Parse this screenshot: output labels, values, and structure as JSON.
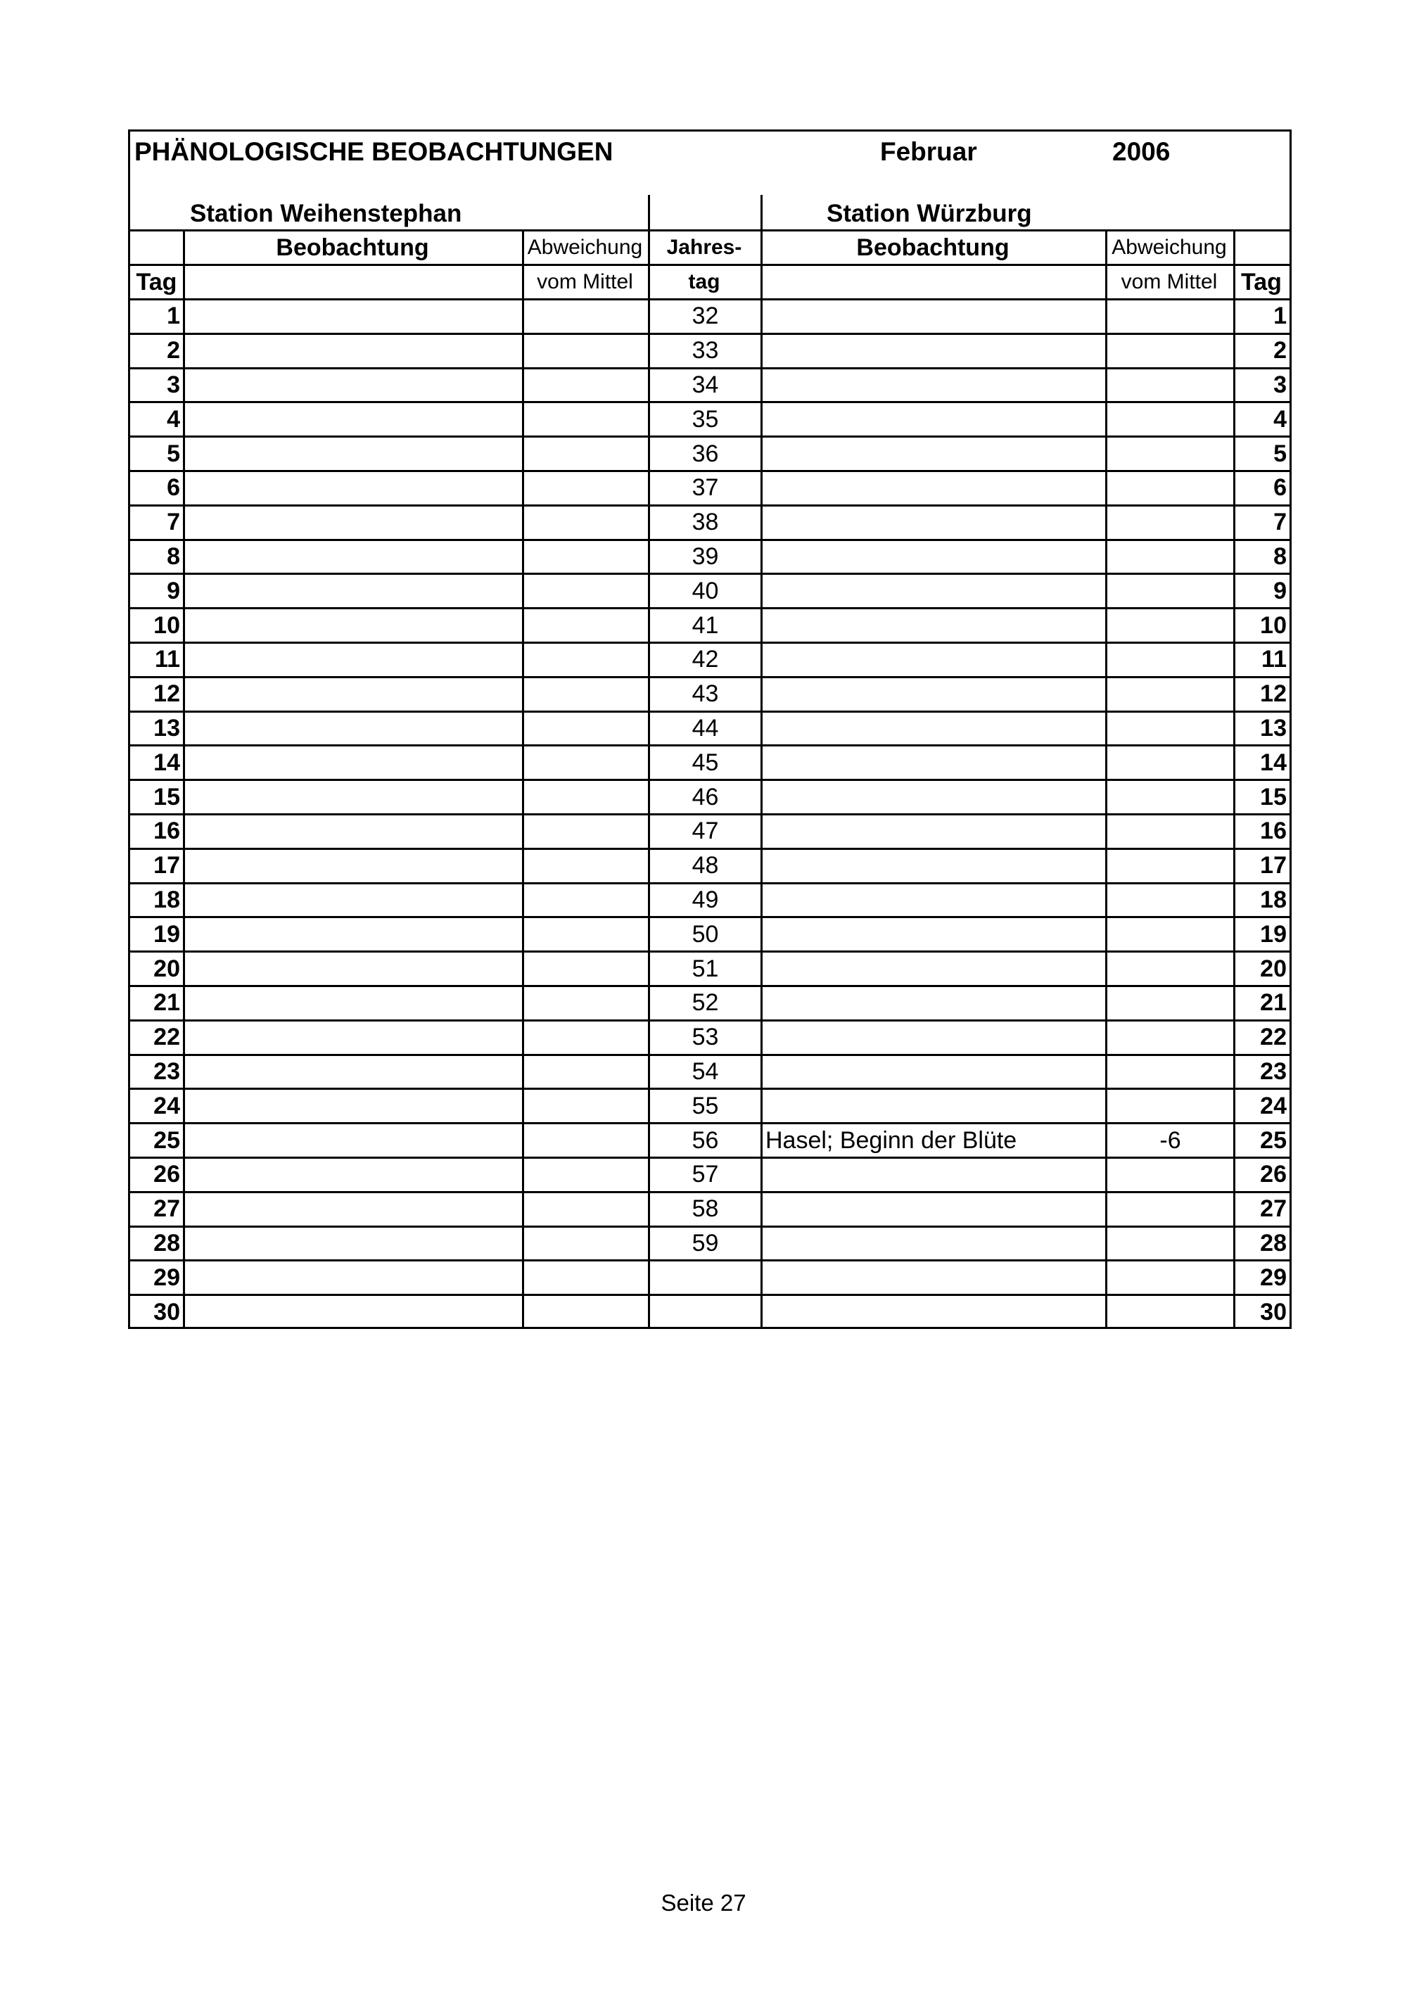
{
  "header": {
    "title": "PHÄNOLOGISCHE BEOBACHTUNGEN",
    "month": "Februar",
    "year": "2006"
  },
  "stations": {
    "left": "Station Weihenstephan",
    "right": "Station Würzburg"
  },
  "columns": {
    "tag": "Tag",
    "beobachtung": "Beobachtung",
    "abweichung_1": "Abweichung",
    "abweichung_2": "vom Mittel",
    "jahrestag_1": "Jahres-",
    "jahrestag_2": "tag"
  },
  "rows": [
    {
      "tag": "1",
      "left_obs": "",
      "left_dev": "",
      "jahrestag": "32",
      "right_obs": "",
      "right_dev": ""
    },
    {
      "tag": "2",
      "left_obs": "",
      "left_dev": "",
      "jahrestag": "33",
      "right_obs": "",
      "right_dev": ""
    },
    {
      "tag": "3",
      "left_obs": "",
      "left_dev": "",
      "jahrestag": "34",
      "right_obs": "",
      "right_dev": ""
    },
    {
      "tag": "4",
      "left_obs": "",
      "left_dev": "",
      "jahrestag": "35",
      "right_obs": "",
      "right_dev": ""
    },
    {
      "tag": "5",
      "left_obs": "",
      "left_dev": "",
      "jahrestag": "36",
      "right_obs": "",
      "right_dev": ""
    },
    {
      "tag": "6",
      "left_obs": "",
      "left_dev": "",
      "jahrestag": "37",
      "right_obs": "",
      "right_dev": ""
    },
    {
      "tag": "7",
      "left_obs": "",
      "left_dev": "",
      "jahrestag": "38",
      "right_obs": "",
      "right_dev": ""
    },
    {
      "tag": "8",
      "left_obs": "",
      "left_dev": "",
      "jahrestag": "39",
      "right_obs": "",
      "right_dev": ""
    },
    {
      "tag": "9",
      "left_obs": "",
      "left_dev": "",
      "jahrestag": "40",
      "right_obs": "",
      "right_dev": ""
    },
    {
      "tag": "10",
      "left_obs": "",
      "left_dev": "",
      "jahrestag": "41",
      "right_obs": "",
      "right_dev": ""
    },
    {
      "tag": "11",
      "left_obs": "",
      "left_dev": "",
      "jahrestag": "42",
      "right_obs": "",
      "right_dev": ""
    },
    {
      "tag": "12",
      "left_obs": "",
      "left_dev": "",
      "jahrestag": "43",
      "right_obs": "",
      "right_dev": ""
    },
    {
      "tag": "13",
      "left_obs": "",
      "left_dev": "",
      "jahrestag": "44",
      "right_obs": "",
      "right_dev": ""
    },
    {
      "tag": "14",
      "left_obs": "",
      "left_dev": "",
      "jahrestag": "45",
      "right_obs": "",
      "right_dev": ""
    },
    {
      "tag": "15",
      "left_obs": "",
      "left_dev": "",
      "jahrestag": "46",
      "right_obs": "",
      "right_dev": ""
    },
    {
      "tag": "16",
      "left_obs": "",
      "left_dev": "",
      "jahrestag": "47",
      "right_obs": "",
      "right_dev": ""
    },
    {
      "tag": "17",
      "left_obs": "",
      "left_dev": "",
      "jahrestag": "48",
      "right_obs": "",
      "right_dev": ""
    },
    {
      "tag": "18",
      "left_obs": "",
      "left_dev": "",
      "jahrestag": "49",
      "right_obs": "",
      "right_dev": ""
    },
    {
      "tag": "19",
      "left_obs": "",
      "left_dev": "",
      "jahrestag": "50",
      "right_obs": "",
      "right_dev": ""
    },
    {
      "tag": "20",
      "left_obs": "",
      "left_dev": "",
      "jahrestag": "51",
      "right_obs": "",
      "right_dev": ""
    },
    {
      "tag": "21",
      "left_obs": "",
      "left_dev": "",
      "jahrestag": "52",
      "right_obs": "",
      "right_dev": ""
    },
    {
      "tag": "22",
      "left_obs": "",
      "left_dev": "",
      "jahrestag": "53",
      "right_obs": "",
      "right_dev": ""
    },
    {
      "tag": "23",
      "left_obs": "",
      "left_dev": "",
      "jahrestag": "54",
      "right_obs": "",
      "right_dev": ""
    },
    {
      "tag": "24",
      "left_obs": "",
      "left_dev": "",
      "jahrestag": "55",
      "right_obs": "",
      "right_dev": ""
    },
    {
      "tag": "25",
      "left_obs": "",
      "left_dev": "",
      "jahrestag": "56",
      "right_obs": "Hasel; Beginn der Blüte",
      "right_dev": "-6"
    },
    {
      "tag": "26",
      "left_obs": "",
      "left_dev": "",
      "jahrestag": "57",
      "right_obs": "",
      "right_dev": ""
    },
    {
      "tag": "27",
      "left_obs": "",
      "left_dev": "",
      "jahrestag": "58",
      "right_obs": "",
      "right_dev": ""
    },
    {
      "tag": "28",
      "left_obs": "",
      "left_dev": "",
      "jahrestag": "59",
      "right_obs": "",
      "right_dev": ""
    },
    {
      "tag": "29",
      "left_obs": "",
      "left_dev": "",
      "jahrestag": "",
      "right_obs": "",
      "right_dev": ""
    },
    {
      "tag": "30",
      "left_obs": "",
      "left_dev": "",
      "jahrestag": "",
      "right_obs": "",
      "right_dev": ""
    }
  ],
  "footer": {
    "page": "Seite 27"
  }
}
